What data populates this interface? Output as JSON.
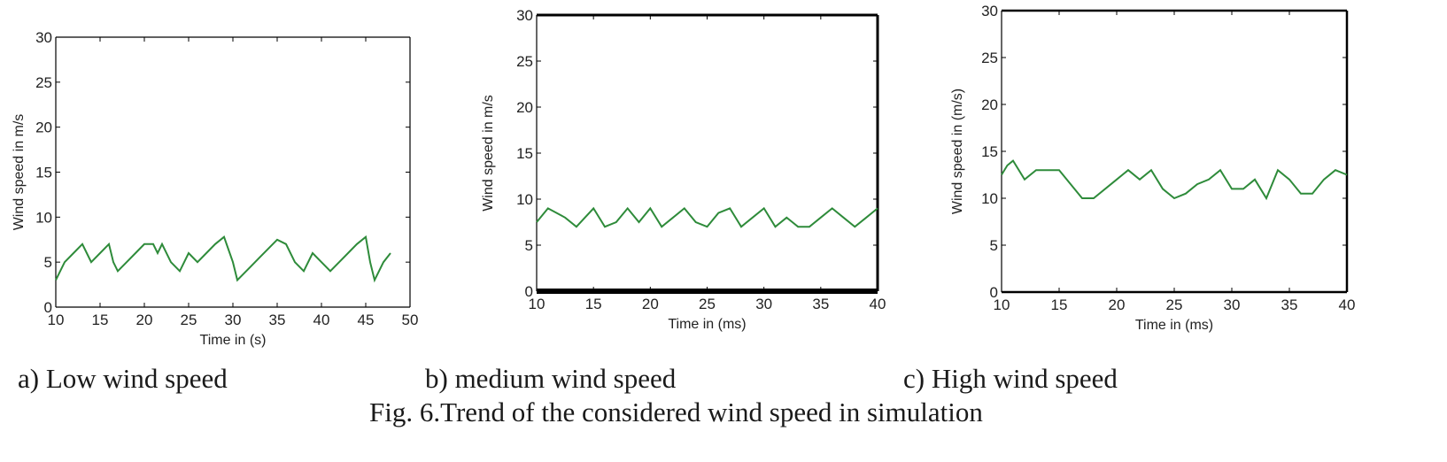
{
  "figure_caption": "Fig. 6.Trend of the considered wind speed in simulation",
  "chart_data": [
    {
      "type": "line",
      "caption": "a)  Low wind speed",
      "xlabel": "Time in (s)",
      "ylabel": "Wind speed in m/s",
      "xlim": [
        10,
        50
      ],
      "ylim": [
        0,
        30
      ],
      "xticks": [
        10,
        15,
        20,
        25,
        30,
        35,
        40,
        45,
        50
      ],
      "yticks": [
        0,
        5,
        10,
        15,
        20,
        25,
        30
      ],
      "line_color": "#2e8b3a",
      "series": [
        {
          "x": [
            10,
            10.5,
            11,
            12,
            13,
            13.5,
            14,
            15,
            16,
            16.5,
            17,
            18,
            19,
            20,
            21,
            21.5,
            22,
            23,
            24,
            24.5,
            25,
            26,
            27,
            28,
            29,
            30,
            30.5,
            31,
            32,
            33,
            34,
            35,
            36,
            37,
            38,
            39,
            40,
            41,
            42,
            43,
            44,
            45,
            45.5,
            46,
            47,
            47.8
          ],
          "y": [
            3,
            4,
            5,
            6,
            7,
            6,
            5,
            6,
            7,
            5,
            4,
            5,
            6,
            7,
            7,
            6,
            7,
            5,
            4,
            5,
            6,
            5,
            6,
            7,
            7.8,
            5,
            3,
            3.5,
            4.5,
            5.5,
            6.5,
            7.5,
            7,
            5,
            4,
            6,
            5,
            4,
            5,
            6,
            7,
            7.8,
            5,
            3,
            5,
            6
          ]
        }
      ]
    },
    {
      "type": "line",
      "caption": "b) medium wind speed",
      "xlabel": "Time in (ms)",
      "ylabel": "Wind speed in m/s",
      "xlim": [
        10,
        40
      ],
      "ylim": [
        0,
        30
      ],
      "xticks": [
        10,
        15,
        20,
        25,
        30,
        35,
        40
      ],
      "yticks": [
        0,
        5,
        10,
        15,
        20,
        25,
        30
      ],
      "line_color": "#2e8b3a",
      "series": [
        {
          "x": [
            10,
            11,
            12.5,
            13.5,
            15,
            16,
            17,
            18,
            19,
            20,
            21,
            22,
            23,
            24,
            25,
            26,
            27,
            28,
            29,
            30,
            31,
            32,
            33,
            34,
            35,
            36,
            37,
            38,
            39,
            40
          ],
          "y": [
            7.5,
            9,
            8,
            7,
            9,
            7,
            7.5,
            9,
            7.5,
            9,
            7,
            8,
            9,
            7.5,
            7,
            8.5,
            9,
            7,
            8,
            9,
            7,
            8,
            7,
            7,
            8,
            9,
            8,
            7,
            8,
            9
          ]
        }
      ]
    },
    {
      "type": "line",
      "caption": "c) High wind speed",
      "xlabel": "Time in (ms)",
      "ylabel": "Wind speed in (m/s)",
      "xlim": [
        10,
        40
      ],
      "ylim": [
        0,
        30
      ],
      "xticks": [
        10,
        15,
        20,
        25,
        30,
        35,
        40
      ],
      "yticks": [
        0,
        5,
        10,
        15,
        20,
        25,
        30
      ],
      "line_color": "#2e8b3a",
      "series": [
        {
          "x": [
            10,
            10.5,
            11,
            12,
            13,
            14,
            15,
            17,
            18,
            20,
            21,
            22,
            23,
            24,
            25,
            26,
            27,
            28,
            29,
            30,
            31,
            32,
            33,
            34,
            35,
            36,
            37,
            38,
            39,
            40
          ],
          "y": [
            12.5,
            13.5,
            14,
            12,
            13,
            13,
            13,
            10,
            10,
            12,
            13,
            12,
            13,
            11,
            10,
            10.5,
            11.5,
            12,
            13,
            11,
            11,
            12,
            10,
            13,
            12,
            10.5,
            10.5,
            12,
            13,
            12.5
          ]
        }
      ]
    }
  ]
}
